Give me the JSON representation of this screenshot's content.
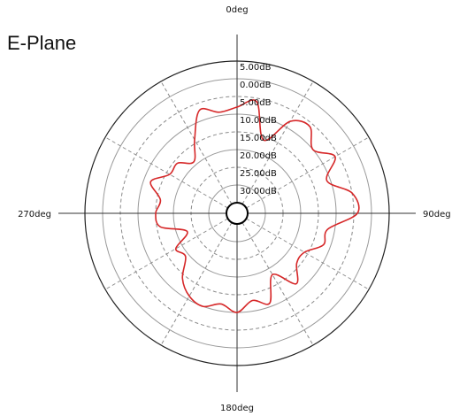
{
  "chart_data": {
    "type": "polar-line",
    "title": "E-Plane",
    "angle_labels": {
      "top": "0deg",
      "right": "90deg",
      "bottom": "180deg",
      "left": "270deg"
    },
    "radial_ticks": [
      "5.00dB",
      "0.00dB",
      "5.00dB",
      "10.00dB",
      "15.00dB",
      "20.00dB",
      "25.00dB",
      "30.00dB"
    ],
    "rlim_db": [
      -35,
      5
    ],
    "grid": true,
    "angle_grid_step_deg": 30,
    "series": [
      {
        "color": "#d62728",
        "units": "dB",
        "angles_deg": [
          0,
          10,
          20,
          30,
          40,
          50,
          60,
          70,
          80,
          90,
          100,
          110,
          120,
          130,
          140,
          150,
          160,
          170,
          180,
          190,
          200,
          210,
          220,
          230,
          240,
          250,
          260,
          270,
          280,
          290,
          300,
          310,
          320,
          330,
          340,
          350
        ],
        "values_db": [
          -8,
          -6,
          -16,
          -8,
          -6,
          -10,
          -6,
          -11,
          -5,
          -4,
          -12,
          -12,
          -16,
          -16,
          -12,
          -18,
          -11,
          -13,
          -10,
          -12,
          -10,
          -11,
          -14,
          -19,
          -18,
          -23,
          -16,
          -15,
          -16,
          -12,
          -16,
          -16,
          -19,
          -14,
          -7,
          -9
        ]
      }
    ]
  }
}
